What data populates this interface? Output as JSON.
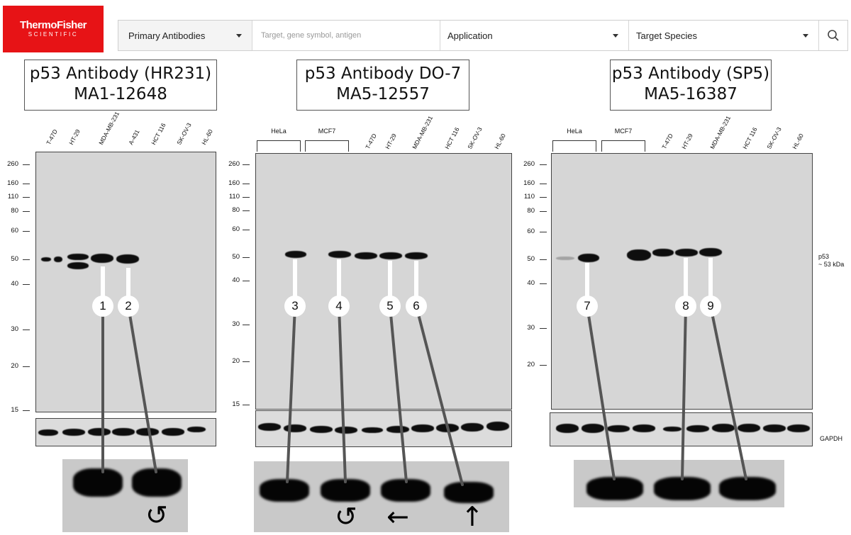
{
  "header": {
    "logo_line1": "ThermoFisher",
    "logo_line2": "SCIENTIFIC",
    "primary_label": "Primary Antibodies",
    "search_placeholder": "Target, gene symbol, antigen",
    "application_label": "Application",
    "species_label": "Target Species",
    "search_icon": "magnifier-icon"
  },
  "panels": [
    {
      "title_line1": "p53  Antibody (HR231)",
      "title_line2": "MA1-12648",
      "lanes": [
        "T-47D",
        "HT-29",
        "MDA-MB-231",
        "A-431",
        "HCT 116",
        "SK-OV-3",
        "HL-60"
      ],
      "mw_markers": [
        "260",
        "160",
        "110",
        "80",
        "60",
        "50",
        "40",
        "30",
        "20",
        "15"
      ],
      "callouts": [
        "1",
        "2"
      ],
      "zoom_symbols": [
        "↺"
      ]
    },
    {
      "title_line1": "p53 Antibody DO-7",
      "title_line2": "MA5-12557",
      "groups": [
        "HeLa",
        "MCF7"
      ],
      "lanes": [
        "T-47D",
        "HT-29",
        "MDA-MB-231",
        "HCT 116",
        "SK-OV-3",
        "HL-60"
      ],
      "mw_markers": [
        "260",
        "160",
        "110",
        "80",
        "60",
        "50",
        "40",
        "30",
        "20",
        "15"
      ],
      "callouts": [
        "3",
        "4",
        "5",
        "6"
      ],
      "zoom_symbols": [
        "↺",
        "←",
        "↑"
      ]
    },
    {
      "title_line1": "p53 Antibody (SP5)",
      "title_line2": "MA5-16387",
      "groups": [
        "HeLa",
        "MCF7"
      ],
      "lanes": [
        "T-47D",
        "HT-29",
        "MDA-MB-231",
        "HCT 116",
        "SK-OV-3",
        "HL-60"
      ],
      "mw_markers": [
        "260",
        "160",
        "110",
        "80",
        "60",
        "50",
        "40",
        "30",
        "20"
      ],
      "callouts": [
        "7",
        "8",
        "9"
      ],
      "side_label_line1": "p53",
      "side_label_line2": "~ 53 kDa",
      "gapdh_label": "GAPDH"
    }
  ]
}
